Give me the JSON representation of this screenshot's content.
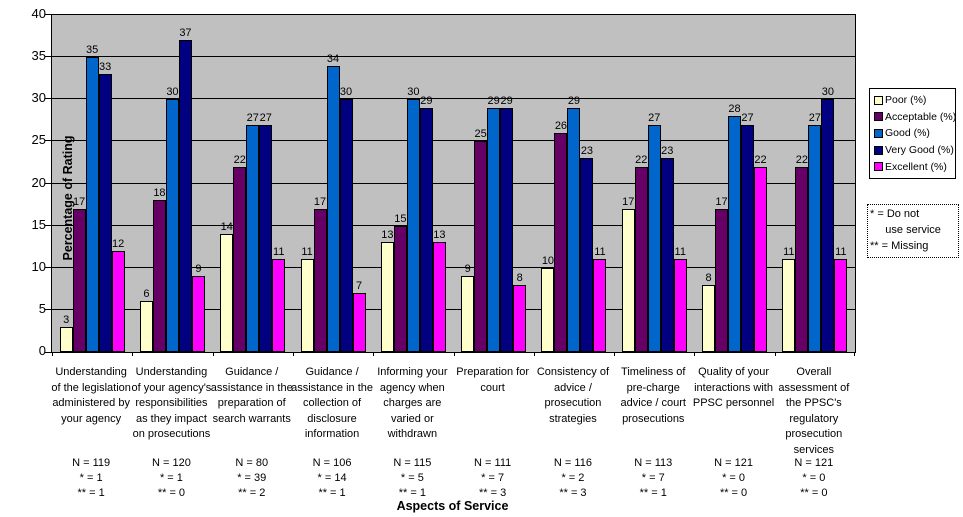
{
  "notes_box": {
    "text": "* = Do not\n     use service\n** = Missing"
  },
  "chart_data": {
    "type": "bar",
    "title": "",
    "xlabel": "Aspects of Service",
    "ylabel": "Percentage of Rating",
    "ylim": [
      0,
      40
    ],
    "yticks": [
      0,
      5,
      10,
      15,
      20,
      25,
      30,
      35,
      40
    ],
    "grid": true,
    "plot_bg": "#C0C0C0",
    "legend_position": "right",
    "data_labels": true,
    "categories": [
      "Understanding\nof the legislation\nadministered by\nyour agency",
      "Understanding\nof your agency's\nresponsibilities\nas they impact\non prosecutions",
      "Guidance /\nassistance in the\npreparation of\nsearch warrants",
      "Guidance /\nassistance in the\ncollection of\ndisclosure\ninformation",
      "Informing your\nagency when\ncharges are\nvaried or\nwithdrawn",
      "Preparation for\ncourt",
      "Consistency of\nadvice /\nprosecution\nstrategies",
      "Timeliness of\npre-charge\nadvice / court\nprosecutions",
      "Quality of your\ninteractions with\nPPSC personnel",
      "Overall\nassessment of\nthe PPSC's\nregulatory\nprosecution\nservices"
    ],
    "category_footnotes": [
      "N = 119\n* = 1\n** = 1",
      "N = 120\n* = 1\n** = 0",
      "N = 80\n* = 39\n** = 2",
      "N = 106\n* = 14\n** = 1",
      "N = 115\n* = 5\n** = 1",
      "N = 111\n* = 7\n** = 3",
      "N = 116\n* = 2\n** = 3",
      "N = 113\n* = 7\n** = 1",
      "N = 121\n* = 0\n** = 0",
      "N = 121\n* = 0\n** = 0"
    ],
    "series": [
      {
        "name": "Poor (%)",
        "color": "#FFFFCC",
        "values": [
          3,
          6,
          14,
          11,
          13,
          9,
          10,
          17,
          8,
          11
        ]
      },
      {
        "name": "Acceptable (%)",
        "color": "#660066",
        "values": [
          17,
          18,
          22,
          17,
          15,
          25,
          26,
          22,
          17,
          22
        ]
      },
      {
        "name": "Good (%)",
        "color": "#0066CC",
        "values": [
          35,
          30,
          27,
          34,
          30,
          29,
          29,
          27,
          28,
          27
        ]
      },
      {
        "name": "Very Good (%)",
        "color": "#000080",
        "values": [
          33,
          37,
          27,
          30,
          29,
          29,
          23,
          23,
          27,
          30
        ]
      },
      {
        "name": "Excellent (%)",
        "color": "#FF00FF",
        "values": [
          12,
          9,
          11,
          7,
          13,
          8,
          11,
          11,
          22,
          11
        ]
      }
    ]
  }
}
